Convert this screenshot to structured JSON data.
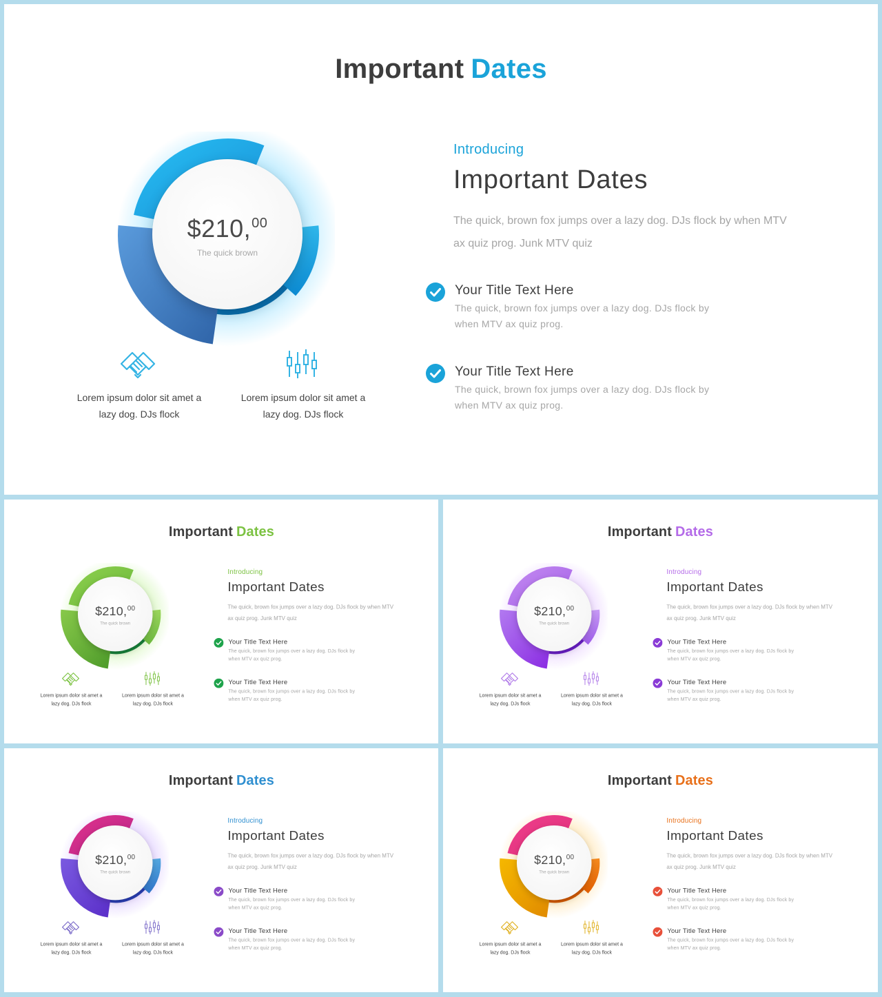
{
  "slides": [
    {
      "title_main": "Important",
      "title_accent": "Dates",
      "accent_color": "#1aa3d9",
      "ring_colors": {
        "top": [
          "#27c0f4",
          "#1a8fd6"
        ],
        "left": [
          "#5a9bdc",
          "#2f64a8"
        ],
        "right": [
          "#2fb6ea",
          "#0c8ad2"
        ],
        "inner": "#0a6fae",
        "glow": "#5fd0ff"
      },
      "check_color": "#1aa3d9",
      "icon_color": "#35b4e4",
      "price_main": "$210,",
      "price_cents": "00",
      "price_caption": "The quick brown",
      "features": [
        {
          "icon": "handshake-icon",
          "text_line1": "Lorem ipsum dolor sit amet a",
          "text_line2": "lazy dog. DJs flock"
        },
        {
          "icon": "candlestick-chart-icon",
          "text_line1": "Lorem ipsum dolor sit amet a",
          "text_line2": "lazy dog. DJs flock"
        }
      ],
      "intro_label": "Introducing",
      "heading": "Important Dates",
      "description_line1": "The quick, brown fox jumps over a lazy dog. DJs flock by when MTV",
      "description_line2": "ax quiz prog. Junk MTV quiz",
      "items": [
        {
          "title": "Your Title Text Here",
          "text_line1": "The quick, brown fox jumps over a lazy dog. DJs flock by",
          "text_line2": "when MTV ax quiz prog."
        },
        {
          "title": "Your Title Text Here",
          "text_line1": "The quick, brown fox jumps over a lazy dog. DJs flock by",
          "text_line2": "when MTV ax quiz prog."
        }
      ]
    },
    {
      "title_main": "Important",
      "title_accent": "Dates",
      "accent_color": "#7cc242",
      "ring_colors": {
        "top": [
          "#8fd14f",
          "#6ab73a"
        ],
        "left": [
          "#88c94a",
          "#4d9a2a"
        ],
        "right": [
          "#9bd65c",
          "#6cb83e"
        ],
        "inner": "#17823a",
        "glow": "#b8f08a"
      },
      "check_color": "#1ea34b",
      "icon_color": "#7cc242",
      "price_main": "$210,",
      "price_cents": "00",
      "price_caption": "The quick brown",
      "features": [
        {
          "icon": "handshake-icon",
          "text_line1": "Lorem ipsum dolor sit amet a",
          "text_line2": "lazy dog. DJs flock"
        },
        {
          "icon": "candlestick-chart-icon",
          "text_line1": "Lorem ipsum dolor sit amet a",
          "text_line2": "lazy dog. DJs flock"
        }
      ],
      "intro_label": "Introducing",
      "heading": "Important Dates",
      "description_line1": "The quick, brown fox jumps over a lazy dog. DJs flock by when MTV",
      "description_line2": "ax quiz prog. Junk MTV quiz",
      "items": [
        {
          "title": "Your Title Text Here",
          "text_line1": "The quick, brown fox jumps over a lazy dog. DJs flock by",
          "text_line2": "when MTV ax quiz prog."
        },
        {
          "title": "Your Title Text Here",
          "text_line1": "The quick, brown fox jumps over a lazy dog. DJs flock by",
          "text_line2": "when MTV ax quiz prog."
        }
      ]
    },
    {
      "title_main": "Important",
      "title_accent": "Dates",
      "accent_color": "#b46be8",
      "ring_colors": {
        "top": [
          "#c58cf2",
          "#a35fe6"
        ],
        "left": [
          "#b27af0",
          "#8a2be2"
        ],
        "right": [
          "#c79af5",
          "#9d5be8"
        ],
        "inner": "#6a1fc7",
        "glow": "#d9b0ff"
      },
      "check_color": "#8a3bd6",
      "icon_color": "#b07ae8",
      "price_main": "$210,",
      "price_cents": "00",
      "price_caption": "The quick brown",
      "features": [
        {
          "icon": "handshake-icon",
          "text_line1": "Lorem ipsum dolor sit amet a",
          "text_line2": "lazy dog. DJs flock"
        },
        {
          "icon": "candlestick-chart-icon",
          "text_line1": "Lorem ipsum dolor sit amet a",
          "text_line2": "lazy dog. DJs flock"
        }
      ],
      "intro_label": "Introducing",
      "heading": "Important Dates",
      "description_line1": "The quick, brown fox jumps over a lazy dog. DJs flock by when MTV",
      "description_line2": "ax quiz prog. Junk MTV quiz",
      "items": [
        {
          "title": "Your Title Text Here",
          "text_line1": "The quick, brown fox jumps over a lazy dog. DJs flock by",
          "text_line2": "when MTV ax quiz prog."
        },
        {
          "title": "Your Title Text Here",
          "text_line1": "The quick, brown fox jumps over a lazy dog. DJs flock by",
          "text_line2": "when MTV ax quiz prog."
        }
      ]
    },
    {
      "title_main": "Important",
      "title_accent": "Dates",
      "accent_color": "#2f8fd0",
      "ring_colors": {
        "top": [
          "#e0338a",
          "#b8258c"
        ],
        "left": [
          "#7a5ae0",
          "#5a2ec8"
        ],
        "right": [
          "#55a8e0",
          "#2f74c8"
        ],
        "inner": "#2a3fb4",
        "glow": "#c7a8ff"
      },
      "check_color": "#8a4ac8",
      "icon_color": "#7a6ac8",
      "price_main": "$210,",
      "price_cents": "00",
      "price_caption": "The quick brown",
      "features": [
        {
          "icon": "handshake-icon",
          "text_line1": "Lorem ipsum dolor sit amet a",
          "text_line2": "lazy dog. DJs flock"
        },
        {
          "icon": "candlestick-chart-icon",
          "text_line1": "Lorem ipsum dolor sit amet a",
          "text_line2": "lazy dog. DJs flock"
        }
      ],
      "intro_label": "Introducing",
      "heading": "Important Dates",
      "description_line1": "The quick, brown fox jumps over a lazy dog. DJs flock by when MTV",
      "description_line2": "ax quiz prog. Junk MTV quiz",
      "items": [
        {
          "title": "Your Title Text Here",
          "text_line1": "The quick, brown fox jumps over a lazy dog. DJs flock by",
          "text_line2": "when MTV ax quiz prog."
        },
        {
          "title": "Your Title Text Here",
          "text_line1": "The quick, brown fox jumps over a lazy dog. DJs flock by",
          "text_line2": "when MTV ax quiz prog."
        }
      ]
    },
    {
      "title_main": "Important",
      "title_accent": "Dates",
      "accent_color": "#e8701a",
      "ring_colors": {
        "top": [
          "#ee3f8c",
          "#e0307a"
        ],
        "left": [
          "#f5b800",
          "#e08a00"
        ],
        "right": [
          "#f58a1f",
          "#e05e00"
        ],
        "inner": "#d45a00",
        "glow": "#ffd27a"
      },
      "check_color": "#e8503a",
      "icon_color": "#e0b020",
      "price_main": "$210,",
      "price_cents": "00",
      "price_caption": "The quick brown",
      "features": [
        {
          "icon": "handshake-icon",
          "text_line1": "Lorem ipsum dolor sit amet a",
          "text_line2": "lazy dog. DJs flock"
        },
        {
          "icon": "candlestick-chart-icon",
          "text_line1": "Lorem ipsum dolor sit amet a",
          "text_line2": "lazy dog. DJs flock"
        }
      ],
      "intro_label": "Introducing",
      "heading": "Important Dates",
      "description_line1": "The quick, brown fox jumps over a lazy dog. DJs flock by when MTV",
      "description_line2": "ax quiz prog. Junk MTV quiz",
      "items": [
        {
          "title": "Your Title Text Here",
          "text_line1": "The quick, brown fox jumps over a lazy dog. DJs flock by",
          "text_line2": "when MTV ax quiz prog."
        },
        {
          "title": "Your Title Text Here",
          "text_line1": "The quick, brown fox jumps over a lazy dog. DJs flock by",
          "text_line2": "when MTV ax quiz prog."
        }
      ]
    }
  ]
}
